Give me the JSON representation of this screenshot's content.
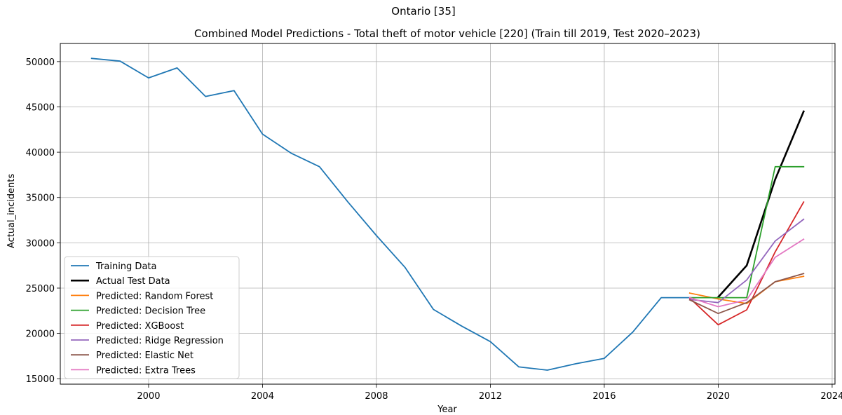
{
  "chart_data": {
    "type": "line",
    "suptitle": "Ontario [35]",
    "title": "Combined Model Predictions - Total theft of motor vehicle [220] (Train till 2019, Test 2020–2023)",
    "xlabel": "Year",
    "ylabel": "Actual_incidents",
    "xlim": [
      1996.9,
      2024.1
    ],
    "ylim": [
      14400,
      52000
    ],
    "xticks": [
      2000,
      2004,
      2008,
      2012,
      2016,
      2020,
      2024
    ],
    "yticks": [
      15000,
      20000,
      25000,
      30000,
      35000,
      40000,
      45000,
      50000
    ],
    "grid": true,
    "legend_position": "lower-left",
    "series": [
      {
        "name": "Training Data",
        "color": "#1f77b4",
        "width": 1.8,
        "x": [
          1998,
          1999,
          2000,
          2001,
          2002,
          2003,
          2004,
          2005,
          2006,
          2007,
          2008,
          2009,
          2010,
          2011,
          2012,
          2013,
          2014,
          2015,
          2016,
          2017,
          2018,
          2019
        ],
        "y": [
          50350,
          50050,
          48200,
          49300,
          46150,
          46800,
          42000,
          39900,
          38400,
          34500,
          30800,
          27300,
          22650,
          20800,
          19100,
          16300,
          15950,
          16650,
          17250,
          20150,
          23950,
          23950
        ]
      },
      {
        "name": "Actual Test Data",
        "color": "#000000",
        "width": 2.6,
        "x": [
          2020,
          2021,
          2022,
          2023
        ],
        "y": [
          24000,
          27500,
          37000,
          44500
        ]
      },
      {
        "name": "Predicted: Random Forest",
        "color": "#ff7f0e",
        "width": 1.8,
        "x": [
          2019,
          2020,
          2021,
          2022,
          2023
        ],
        "y": [
          24450,
          23800,
          23300,
          25700,
          26300
        ]
      },
      {
        "name": "Predicted: Decision Tree",
        "color": "#2ca02c",
        "width": 1.8,
        "x": [
          2019,
          2020,
          2021,
          2022,
          2023
        ],
        "y": [
          23950,
          23950,
          23950,
          38400,
          38400
        ]
      },
      {
        "name": "Predicted: XGBoost",
        "color": "#d62728",
        "width": 1.8,
        "x": [
          2019,
          2020,
          2021,
          2022,
          2023
        ],
        "y": [
          23900,
          20950,
          22600,
          29000,
          34500
        ]
      },
      {
        "name": "Predicted: Ridge Regression",
        "color": "#9467bd",
        "width": 1.8,
        "x": [
          2019,
          2020,
          2021,
          2022,
          2023
        ],
        "y": [
          23750,
          23400,
          25900,
          30200,
          32600
        ]
      },
      {
        "name": "Predicted: Elastic Net",
        "color": "#8c564b",
        "width": 1.8,
        "x": [
          2019,
          2020,
          2021,
          2022,
          2023
        ],
        "y": [
          23700,
          22200,
          23400,
          25700,
          26600
        ]
      },
      {
        "name": "Predicted: Extra Trees",
        "color": "#e377c2",
        "width": 1.8,
        "x": [
          2019,
          2020,
          2021,
          2022,
          2023
        ],
        "y": [
          23950,
          22950,
          23700,
          28400,
          30400
        ]
      }
    ]
  }
}
